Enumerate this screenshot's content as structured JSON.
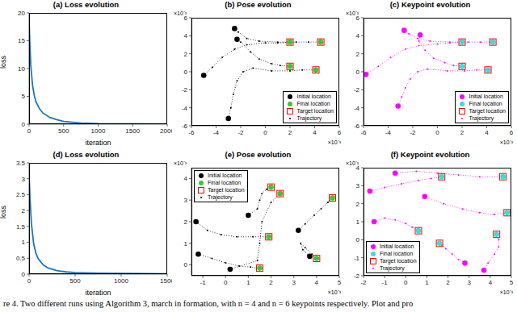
{
  "caption": "re 4. Two different runs using Algorithm 3, march in formation, with n = 4 and n = 6 keypoints respectively. Plot and pro",
  "chart_data": [
    {
      "type": "line",
      "title": "(a) Loss evolution",
      "x_label": "iteration",
      "y_label": "loss",
      "x": [
        0,
        10,
        25,
        50,
        75,
        100,
        150,
        200,
        300,
        400,
        500,
        750,
        1000,
        1500,
        2000
      ],
      "values": [
        19,
        15,
        10.5,
        7,
        5.2,
        4,
        2.8,
        2,
        1.2,
        0.8,
        0.5,
        0.2,
        0.1,
        0.05,
        0.03
      ],
      "color": "#1a75c2",
      "xlim": [
        0,
        2000
      ],
      "xticks": [
        0,
        500,
        1000,
        1500,
        2000
      ],
      "ylim": [
        0,
        20
      ],
      "yticks": [
        0,
        5,
        10,
        15,
        20
      ]
    },
    {
      "type": "scatter",
      "title": "(b) Pose evolution",
      "annotations": [
        "×10⁻³",
        "×10⁻³"
      ],
      "xlim": [
        -6,
        6
      ],
      "xticks": [
        -6,
        -4,
        -2,
        0,
        2,
        4,
        6
      ],
      "ylim": [
        -6,
        6
      ],
      "yticks": [
        -6,
        -4,
        -2,
        0,
        2,
        4,
        6
      ],
      "legend": "lower right",
      "series": [
        {
          "name": "Initial location",
          "marker": "circle",
          "color": "#000000",
          "x": [
            -5,
            -3,
            -2.3,
            -2.5
          ],
          "values": [
            -0.4,
            -5.2,
            3.6,
            4.8
          ]
        },
        {
          "name": "Final location",
          "marker": "circle",
          "color": "#33cc33",
          "x": [
            2,
            4.5,
            2,
            4.1
          ],
          "values": [
            3.3,
            3.3,
            0.6,
            0.2
          ]
        },
        {
          "name": "Target location",
          "marker": "square",
          "color": "#ff0000",
          "x": [
            2,
            4.5,
            2,
            4.1
          ],
          "values": [
            3.3,
            3.3,
            0.6,
            0.2
          ]
        },
        {
          "name": "Trajectory",
          "marker": "dot",
          "line_style": "dotted",
          "color": "#000000",
          "paths": [
            {
              "x": [
                -5,
                -4.3,
                -3.5,
                -2.5,
                -1.5,
                0,
                1,
                2
              ],
              "values": [
                -0.4,
                0.5,
                1.6,
                2.5,
                3,
                3.2,
                3.2,
                3.3
              ]
            },
            {
              "x": [
                -3,
                -2.8,
                -2.6,
                -2.3,
                -1.8,
                -1,
                0.5,
                2,
                3,
                4.1
              ],
              "values": [
                -5.2,
                -4,
                -2.5,
                -1,
                0,
                0.4,
                0.1,
                0.1,
                0.2,
                0.2
              ]
            },
            {
              "x": [
                -2.3,
                -2,
                -1.2,
                -0.5,
                0.5,
                1.2,
                2
              ],
              "values": [
                3.6,
                3.3,
                2.2,
                1.4,
                0.9,
                0.7,
                0.6
              ]
            },
            {
              "x": [
                -2.5,
                -2.2,
                -1.5,
                -0.5,
                1,
                2.5,
                3.5,
                4.5
              ],
              "values": [
                4.8,
                4.4,
                3.7,
                3.4,
                3.3,
                3.3,
                3.3,
                3.3
              ]
            }
          ]
        }
      ]
    },
    {
      "type": "scatter",
      "title": "(c) Keypoint evolution",
      "annotations": [
        "×10⁻³",
        "×10⁻³"
      ],
      "xlim": [
        -6,
        6
      ],
      "xticks": [
        -6,
        -4,
        -2,
        0,
        2,
        4,
        6
      ],
      "ylim": [
        -6,
        6
      ],
      "yticks": [
        -6,
        -4,
        -2,
        0,
        2,
        4,
        6
      ],
      "legend": "lower right",
      "series": [
        {
          "name": "Initial location",
          "marker": "circle",
          "color": "#ff00ff",
          "x": [
            -5.8,
            -3.2,
            -1.4,
            -2.7
          ],
          "values": [
            -0.3,
            -3.8,
            4.1,
            4.6
          ]
        },
        {
          "name": "Final location",
          "marker": "circle",
          "color": "#33e0e0",
          "x": [
            2,
            4.5,
            2,
            4.1
          ],
          "values": [
            3.3,
            3.3,
            0.6,
            0.2
          ]
        },
        {
          "name": "Target location",
          "marker": "square",
          "color": "#ff0000",
          "x": [
            2,
            4.5,
            2,
            4.1
          ],
          "values": [
            3.3,
            3.3,
            0.6,
            0.2
          ]
        },
        {
          "name": "Trajectory",
          "marker": "dot",
          "line_style": "dotted",
          "color": "#ff00ff",
          "paths": [
            {
              "x": [
                -5.8,
                -4.8,
                -3.8,
                -2.6,
                -1.5,
                0,
                1,
                2
              ],
              "values": [
                -0.3,
                0.6,
                1.6,
                2.5,
                2.9,
                3.1,
                3.2,
                3.3
              ]
            },
            {
              "x": [
                -3.2,
                -2.9,
                -2.6,
                -2.2,
                -1.6,
                -0.8,
                0.8,
                2.2,
                3.2,
                4.1
              ],
              "values": [
                -3.8,
                -2.8,
                -1.8,
                -0.8,
                0,
                0.3,
                0.1,
                0.1,
                0.2,
                0.2
              ]
            },
            {
              "x": [
                -1.4,
                -1.5,
                -1,
                -0.3,
                0.6,
                1.3,
                2
              ],
              "values": [
                4.1,
                3.4,
                2.4,
                1.5,
                1,
                0.7,
                0.6
              ]
            },
            {
              "x": [
                -2.7,
                -2.3,
                -1.6,
                -0.6,
                1,
                2.5,
                3.5,
                4.5
              ],
              "values": [
                4.6,
                4.2,
                3.7,
                3.4,
                3.3,
                3.3,
                3.3,
                3.3
              ]
            }
          ]
        }
      ]
    },
    {
      "type": "line",
      "title": "(d) Loss evolution",
      "x_label": "iteration",
      "y_label": "loss",
      "x": [
        0,
        10,
        25,
        50,
        75,
        100,
        150,
        200,
        300,
        400,
        500,
        750,
        1000,
        1500
      ],
      "values": [
        3.1,
        2.4,
        1.6,
        0.95,
        0.65,
        0.48,
        0.3,
        0.2,
        0.11,
        0.07,
        0.05,
        0.03,
        0.02,
        0.01
      ],
      "color": "#1a75c2",
      "xlim": [
        0,
        1500
      ],
      "xticks": [
        0,
        500,
        1000,
        1500
      ],
      "ylim": [
        0,
        3.5
      ],
      "yticks": [
        0,
        0.5,
        1,
        1.5,
        2,
        2.5,
        3,
        3.5
      ]
    },
    {
      "type": "scatter",
      "title": "(e) Pose evolution",
      "annotations": [
        "×10⁻³",
        "×10⁻³"
      ],
      "xlim": [
        -1.5,
        5
      ],
      "xticks": [
        -1,
        0,
        1,
        2,
        3,
        4,
        5
      ],
      "ylim": [
        -0.5,
        4.5
      ],
      "yticks": [
        0,
        1,
        2,
        3,
        4
      ],
      "legend": "upper left",
      "series": [
        {
          "name": "Initial location",
          "marker": "circle",
          "color": "#000000",
          "x": [
            -1.3,
            -1.2,
            1,
            3.7,
            3.2,
            0.2
          ],
          "values": [
            2,
            0.5,
            2.3,
            0.4,
            1.6,
            -0.2
          ]
        },
        {
          "name": "Final location",
          "marker": "circle",
          "color": "#33cc33",
          "x": [
            1.9,
            1.5,
            2,
            4,
            4.7,
            2.4
          ],
          "values": [
            1.3,
            -0.15,
            3.6,
            0.3,
            3.1,
            3.3
          ]
        },
        {
          "name": "Target location",
          "marker": "square",
          "color": "#ff0000",
          "x": [
            1.9,
            1.5,
            2,
            4,
            4.7,
            2.4
          ],
          "values": [
            1.3,
            -0.15,
            3.6,
            0.3,
            3.1,
            3.3
          ]
        },
        {
          "name": "Trajectory",
          "marker": "dot",
          "line_style": "dotted",
          "color": "#000000",
          "paths": [
            {
              "x": [
                -1.3,
                -0.8,
                -0.2,
                0.5,
                1.2,
                1.9
              ],
              "values": [
                2,
                1.6,
                1.4,
                1.3,
                1.3,
                1.3
              ]
            },
            {
              "x": [
                -1.2,
                -0.6,
                0,
                0.6,
                1.1,
                1.5
              ],
              "values": [
                0.5,
                0.3,
                0.1,
                -0.05,
                -0.1,
                -0.15
              ]
            },
            {
              "x": [
                1,
                1.4,
                1.5,
                1.6,
                1.8,
                2
              ],
              "values": [
                2.3,
                2.6,
                3,
                3.3,
                3.5,
                3.6
              ]
            },
            {
              "x": [
                3.7,
                3.4,
                3.3,
                3.5,
                3.8,
                4
              ],
              "values": [
                0.4,
                0.7,
                1,
                0.8,
                0.5,
                0.3
              ]
            },
            {
              "x": [
                3.2,
                3.5,
                3.9,
                4.2,
                4.5,
                4.7
              ],
              "values": [
                1.6,
                1.9,
                2.3,
                2.6,
                2.9,
                3.1
              ]
            },
            {
              "x": [
                0.2,
                1.4,
                1.5,
                1.6,
                2,
                2.4
              ],
              "values": [
                -0.2,
                0.2,
                1,
                2,
                2.9,
                3.3
              ]
            }
          ]
        }
      ]
    },
    {
      "type": "scatter",
      "title": "(f) Keypoint evolution",
      "annotations": [
        "×10⁻³",
        "×10⁻³"
      ],
      "xlim": [
        -2,
        5
      ],
      "xticks": [
        -2,
        -1,
        0,
        1,
        2,
        3,
        4,
        5
      ],
      "ylim": [
        -2,
        4
      ],
      "yticks": [
        -2,
        -1,
        0,
        1,
        2,
        3,
        4
      ],
      "legend": "lower left",
      "series": [
        {
          "name": "Initial location",
          "marker": "circle",
          "color": "#ff00ff",
          "x": [
            -1.7,
            -1.5,
            -0.5,
            2.8,
            3.7,
            0.9
          ],
          "values": [
            2.7,
            1,
            3.7,
            -1.3,
            -1.7,
            2.4
          ]
        },
        {
          "name": "Final location",
          "marker": "circle",
          "color": "#33e0e0",
          "x": [
            1.7,
            0.6,
            4.6,
            1.6,
            4.3,
            4.8
          ],
          "values": [
            3.5,
            0.5,
            3.5,
            -0.2,
            0.3,
            1.5
          ]
        },
        {
          "name": "Target location",
          "marker": "square",
          "color": "#ff0000",
          "x": [
            1.7,
            0.6,
            4.6,
            1.6,
            4.3,
            4.8
          ],
          "values": [
            3.5,
            0.5,
            3.5,
            -0.2,
            0.3,
            1.5
          ]
        },
        {
          "name": "Trajectory",
          "marker": "dot",
          "line_style": "dotted",
          "color": "#ff00ff",
          "paths": [
            {
              "x": [
                -1.7,
                -1,
                -0.2,
                0.6,
                1.2,
                1.7
              ],
              "values": [
                2.7,
                2.9,
                3.1,
                3.3,
                3.4,
                3.5
              ]
            },
            {
              "x": [
                -1.5,
                -1,
                -0.5,
                0,
                0.3,
                0.6
              ],
              "values": [
                1,
                1.2,
                1.1,
                0.9,
                0.7,
                0.5
              ]
            },
            {
              "x": [
                -0.5,
                0.5,
                1.5,
                2.5,
                3.5,
                4.6
              ],
              "values": [
                3.7,
                3.8,
                3.7,
                3.6,
                3.5,
                3.5
              ]
            },
            {
              "x": [
                2.8,
                2.5,
                2.2,
                1.9,
                1.7,
                1.6
              ],
              "values": [
                -1.3,
                -1.1,
                -0.8,
                -0.5,
                -0.3,
                -0.2
              ]
            },
            {
              "x": [
                3.7,
                3.9,
                4.2,
                4.4,
                4.4,
                4.3
              ],
              "values": [
                -1.7,
                -1.3,
                -0.8,
                -0.4,
                0,
                0.3
              ]
            },
            {
              "x": [
                0.9,
                1.8,
                2.7,
                3.5,
                4.2,
                4.8
              ],
              "values": [
                2.4,
                2,
                1.7,
                1.5,
                1.4,
                1.5
              ]
            }
          ]
        }
      ]
    }
  ]
}
